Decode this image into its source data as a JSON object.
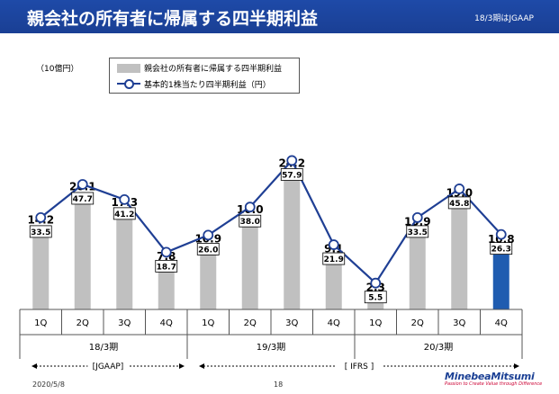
{
  "header": {
    "title": "親会社の所有者に帰属する四半期利益",
    "gaap_note": "18/3期はJGAAP"
  },
  "unit_label": "（10億円）",
  "legend": {
    "bar_label": "親会社の所有者に帰属する四半期利益",
    "line_label": "基本的1株当たり四半期利益（円）"
  },
  "chart_data": {
    "type": "bar",
    "categories": [
      "1Q",
      "2Q",
      "3Q",
      "4Q",
      "1Q",
      "2Q",
      "3Q",
      "4Q",
      "1Q",
      "2Q",
      "3Q",
      "4Q"
    ],
    "groups": [
      "18/3期",
      "19/3期",
      "20/3期"
    ],
    "series": [
      {
        "name": "親会社の所有者に帰属する四半期利益",
        "type": "bar",
        "values": [
          14.2,
          20.1,
          17.3,
          7.8,
          10.9,
          16.0,
          24.2,
          9.1,
          2.3,
          13.9,
          19.0,
          10.8
        ],
        "labels": [
          "14.2",
          "20.1",
          "17.3",
          "7.8",
          "10.9",
          "16.0",
          "24.2",
          "9.1",
          "2.3",
          "13.9",
          "19.0",
          "10.8"
        ]
      },
      {
        "name": "基本的1株当たり四半期利益（円）",
        "type": "line",
        "values": [
          33.5,
          47.7,
          41.2,
          18.7,
          26.0,
          38.0,
          57.9,
          21.9,
          5.5,
          33.5,
          45.8,
          26.3
        ],
        "labels": [
          "33.5",
          "47.7",
          "41.2",
          "18.7",
          "26.0",
          "38.0",
          "57.9",
          "21.9",
          "5.5",
          "33.5",
          "45.8",
          "26.3"
        ]
      }
    ],
    "highlight_index": 11,
    "colors": {
      "bar": "#c0c0c0",
      "bar_highlight": "#1f5cb0",
      "line": "#1f3f94",
      "axis": "#555555"
    },
    "standards": [
      {
        "label": "[JGAAP]",
        "from": 0,
        "to": 3
      },
      {
        "label": "[ IFRS ]",
        "from": 4,
        "to": 11
      }
    ]
  },
  "footer": {
    "date": "2020/5/8",
    "page": "18",
    "logo_name": "MinebeaMitsumi",
    "logo_tagline": "Passion to Create Value through Difference"
  }
}
